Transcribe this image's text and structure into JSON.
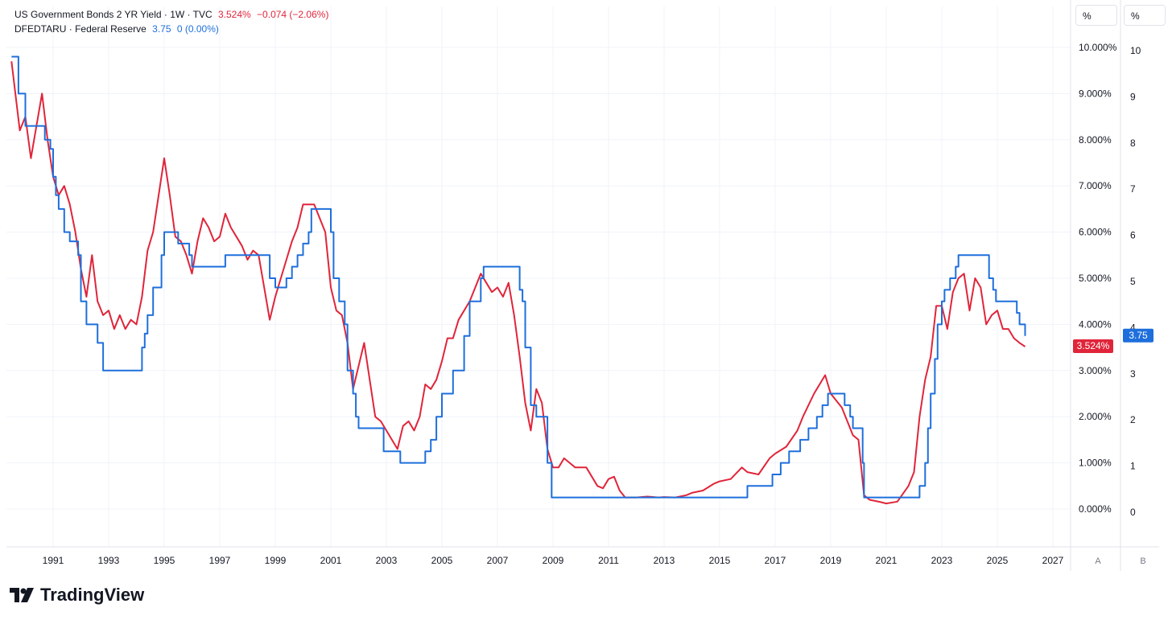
{
  "legend": {
    "series1": {
      "name": "US Government Bonds 2 YR Yield · 1W · TVC",
      "last": "3.524%",
      "change": "−0.074 (−2.06%)"
    },
    "series2": {
      "name": "DFEDTARU · Federal Reserve",
      "last": "3.75",
      "change": "0 (0.00%)"
    }
  },
  "scale_buttons": {
    "left": "%",
    "right": "%"
  },
  "axis_buttons": {
    "a": "A",
    "b": "B"
  },
  "brand": {
    "name": "TradingView"
  },
  "colors": {
    "red": "#e0253a",
    "blue": "#1e6fdc",
    "grid": "#f0f3fa",
    "axis_text": "#131722"
  },
  "chart_data": {
    "type": "line",
    "x_axis": {
      "ticks": [
        "1991",
        "1993",
        "1995",
        "1997",
        "1999",
        "2001",
        "2003",
        "2005",
        "2007",
        "2009",
        "2011",
        "2013",
        "2015",
        "2017",
        "2019",
        "2021",
        "2023",
        "2025",
        "2027"
      ],
      "range": [
        1989.4,
        2028.6
      ]
    },
    "y_left": {
      "ticks": [
        "10.000%",
        "9.000%",
        "8.000%",
        "7.000%",
        "6.000%",
        "5.000%",
        "4.000%",
        "3.000%",
        "2.000%",
        "1.000%",
        "0.000%"
      ],
      "range": [
        -0.8,
        10.5
      ]
    },
    "y_right": {
      "ticks": [
        "10",
        "9",
        "8",
        "7",
        "6",
        "5",
        "4",
        "3",
        "2",
        "1",
        "0"
      ],
      "range": [
        -0.8,
        10.5
      ]
    },
    "last_value_labels": {
      "left": "3.524%",
      "right": "3.75"
    },
    "series": [
      {
        "name": "US Government Bonds 2 YR Yield",
        "color": "#e0253a",
        "points": [
          [
            1989.5,
            9.7
          ],
          [
            1989.8,
            8.2
          ],
          [
            1990.0,
            8.5
          ],
          [
            1990.2,
            7.6
          ],
          [
            1990.4,
            8.3
          ],
          [
            1990.6,
            9.0
          ],
          [
            1990.8,
            8.0
          ],
          [
            1991.0,
            7.2
          ],
          [
            1991.2,
            6.8
          ],
          [
            1991.4,
            7.0
          ],
          [
            1991.6,
            6.6
          ],
          [
            1991.8,
            6.0
          ],
          [
            1992.0,
            5.2
          ],
          [
            1992.2,
            4.6
          ],
          [
            1992.4,
            5.5
          ],
          [
            1992.6,
            4.5
          ],
          [
            1992.8,
            4.2
          ],
          [
            1993.0,
            4.3
          ],
          [
            1993.2,
            3.9
          ],
          [
            1993.4,
            4.2
          ],
          [
            1993.6,
            3.9
          ],
          [
            1993.8,
            4.1
          ],
          [
            1994.0,
            4.0
          ],
          [
            1994.2,
            4.6
          ],
          [
            1994.4,
            5.6
          ],
          [
            1994.6,
            6.0
          ],
          [
            1994.8,
            6.8
          ],
          [
            1995.0,
            7.6
          ],
          [
            1995.2,
            6.8
          ],
          [
            1995.4,
            5.9
          ],
          [
            1995.6,
            5.8
          ],
          [
            1995.8,
            5.5
          ],
          [
            1996.0,
            5.1
          ],
          [
            1996.2,
            5.8
          ],
          [
            1996.4,
            6.3
          ],
          [
            1996.6,
            6.1
          ],
          [
            1996.8,
            5.8
          ],
          [
            1997.0,
            5.9
          ],
          [
            1997.2,
            6.4
          ],
          [
            1997.4,
            6.1
          ],
          [
            1997.6,
            5.9
          ],
          [
            1997.8,
            5.7
          ],
          [
            1998.0,
            5.4
          ],
          [
            1998.2,
            5.6
          ],
          [
            1998.4,
            5.5
          ],
          [
            1998.6,
            4.8
          ],
          [
            1998.8,
            4.1
          ],
          [
            1999.0,
            4.6
          ],
          [
            1999.2,
            5.0
          ],
          [
            1999.4,
            5.4
          ],
          [
            1999.6,
            5.8
          ],
          [
            1999.8,
            6.1
          ],
          [
            2000.0,
            6.6
          ],
          [
            2000.2,
            6.6
          ],
          [
            2000.4,
            6.6
          ],
          [
            2000.6,
            6.3
          ],
          [
            2000.8,
            6.0
          ],
          [
            2001.0,
            4.8
          ],
          [
            2001.2,
            4.3
          ],
          [
            2001.4,
            4.2
          ],
          [
            2001.6,
            3.6
          ],
          [
            2001.8,
            2.6
          ],
          [
            2002.0,
            3.1
          ],
          [
            2002.2,
            3.6
          ],
          [
            2002.4,
            2.8
          ],
          [
            2002.6,
            2.0
          ],
          [
            2002.8,
            1.9
          ],
          [
            2003.0,
            1.7
          ],
          [
            2003.2,
            1.5
          ],
          [
            2003.4,
            1.3
          ],
          [
            2003.6,
            1.8
          ],
          [
            2003.8,
            1.9
          ],
          [
            2004.0,
            1.7
          ],
          [
            2004.2,
            2.0
          ],
          [
            2004.4,
            2.7
          ],
          [
            2004.6,
            2.6
          ],
          [
            2004.8,
            2.8
          ],
          [
            2005.0,
            3.2
          ],
          [
            2005.2,
            3.7
          ],
          [
            2005.4,
            3.7
          ],
          [
            2005.6,
            4.1
          ],
          [
            2005.8,
            4.3
          ],
          [
            2006.0,
            4.5
          ],
          [
            2006.2,
            4.8
          ],
          [
            2006.4,
            5.1
          ],
          [
            2006.6,
            4.9
          ],
          [
            2006.8,
            4.7
          ],
          [
            2007.0,
            4.8
          ],
          [
            2007.2,
            4.6
          ],
          [
            2007.4,
            4.9
          ],
          [
            2007.6,
            4.2
          ],
          [
            2007.8,
            3.3
          ],
          [
            2008.0,
            2.3
          ],
          [
            2008.2,
            1.7
          ],
          [
            2008.4,
            2.6
          ],
          [
            2008.6,
            2.3
          ],
          [
            2008.8,
            1.3
          ],
          [
            2009.0,
            0.9
          ],
          [
            2009.2,
            0.9
          ],
          [
            2009.4,
            1.1
          ],
          [
            2009.6,
            1.0
          ],
          [
            2009.8,
            0.9
          ],
          [
            2010.0,
            0.9
          ],
          [
            2010.2,
            0.9
          ],
          [
            2010.4,
            0.7
          ],
          [
            2010.6,
            0.5
          ],
          [
            2010.8,
            0.45
          ],
          [
            2011.0,
            0.65
          ],
          [
            2011.2,
            0.7
          ],
          [
            2011.4,
            0.4
          ],
          [
            2011.6,
            0.25
          ],
          [
            2011.8,
            0.25
          ],
          [
            2012.0,
            0.25
          ],
          [
            2012.4,
            0.27
          ],
          [
            2012.8,
            0.25
          ],
          [
            2013.0,
            0.26
          ],
          [
            2013.4,
            0.25
          ],
          [
            2013.8,
            0.3
          ],
          [
            2014.0,
            0.35
          ],
          [
            2014.4,
            0.4
          ],
          [
            2014.8,
            0.55
          ],
          [
            2015.0,
            0.6
          ],
          [
            2015.4,
            0.65
          ],
          [
            2015.8,
            0.9
          ],
          [
            2016.0,
            0.8
          ],
          [
            2016.4,
            0.75
          ],
          [
            2016.8,
            1.1
          ],
          [
            2017.0,
            1.2
          ],
          [
            2017.4,
            1.35
          ],
          [
            2017.8,
            1.7
          ],
          [
            2018.0,
            2.0
          ],
          [
            2018.4,
            2.5
          ],
          [
            2018.8,
            2.9
          ],
          [
            2019.0,
            2.5
          ],
          [
            2019.4,
            2.2
          ],
          [
            2019.8,
            1.6
          ],
          [
            2020.0,
            1.5
          ],
          [
            2020.2,
            0.3
          ],
          [
            2020.4,
            0.2
          ],
          [
            2020.8,
            0.15
          ],
          [
            2021.0,
            0.12
          ],
          [
            2021.4,
            0.16
          ],
          [
            2021.8,
            0.5
          ],
          [
            2022.0,
            0.8
          ],
          [
            2022.2,
            2.0
          ],
          [
            2022.4,
            2.8
          ],
          [
            2022.6,
            3.3
          ],
          [
            2022.8,
            4.4
          ],
          [
            2023.0,
            4.4
          ],
          [
            2023.2,
            3.9
          ],
          [
            2023.4,
            4.7
          ],
          [
            2023.6,
            5.0
          ],
          [
            2023.8,
            5.1
          ],
          [
            2024.0,
            4.3
          ],
          [
            2024.2,
            5.0
          ],
          [
            2024.4,
            4.8
          ],
          [
            2024.6,
            4.0
          ],
          [
            2024.8,
            4.2
          ],
          [
            2025.0,
            4.3
          ],
          [
            2025.2,
            3.9
          ],
          [
            2025.4,
            3.9
          ],
          [
            2025.6,
            3.7
          ],
          [
            2025.8,
            3.6
          ],
          [
            2026.0,
            3.52
          ]
        ]
      },
      {
        "name": "DFEDTARU · Federal Reserve",
        "color": "#1e6fdc",
        "points": [
          [
            1989.5,
            9.8
          ],
          [
            1989.7,
            9.8
          ],
          [
            1989.75,
            9.0
          ],
          [
            1989.9,
            9.0
          ],
          [
            1990.0,
            8.3
          ],
          [
            1990.6,
            8.3
          ],
          [
            1990.7,
            8.0
          ],
          [
            1990.9,
            7.8
          ],
          [
            1991.0,
            7.2
          ],
          [
            1991.1,
            6.8
          ],
          [
            1991.2,
            6.5
          ],
          [
            1991.4,
            6.0
          ],
          [
            1991.6,
            5.8
          ],
          [
            1991.9,
            5.5
          ],
          [
            1992.0,
            4.5
          ],
          [
            1992.2,
            4.0
          ],
          [
            1992.6,
            3.6
          ],
          [
            1992.8,
            3.0
          ],
          [
            1994.1,
            3.0
          ],
          [
            1994.2,
            3.5
          ],
          [
            1994.3,
            3.8
          ],
          [
            1994.4,
            4.2
          ],
          [
            1994.6,
            4.8
          ],
          [
            1994.9,
            5.5
          ],
          [
            1995.0,
            6.0
          ],
          [
            1995.5,
            5.75
          ],
          [
            1995.9,
            5.5
          ],
          [
            1996.0,
            5.25
          ],
          [
            1997.2,
            5.5
          ],
          [
            1998.7,
            5.5
          ],
          [
            1998.8,
            5.0
          ],
          [
            1999.0,
            4.8
          ],
          [
            1999.4,
            5.0
          ],
          [
            1999.6,
            5.25
          ],
          [
            1999.8,
            5.5
          ],
          [
            2000.0,
            5.75
          ],
          [
            2000.2,
            6.0
          ],
          [
            2000.3,
            6.5
          ],
          [
            2001.0,
            6.0
          ],
          [
            2001.1,
            5.0
          ],
          [
            2001.3,
            4.5
          ],
          [
            2001.5,
            4.0
          ],
          [
            2001.6,
            3.0
          ],
          [
            2001.8,
            2.5
          ],
          [
            2001.9,
            2.0
          ],
          [
            2002.0,
            1.75
          ],
          [
            2002.9,
            1.25
          ],
          [
            2003.5,
            1.0
          ],
          [
            2004.4,
            1.25
          ],
          [
            2004.6,
            1.5
          ],
          [
            2004.8,
            2.0
          ],
          [
            2005.0,
            2.5
          ],
          [
            2005.4,
            3.0
          ],
          [
            2005.8,
            3.75
          ],
          [
            2006.0,
            4.5
          ],
          [
            2006.4,
            5.0
          ],
          [
            2006.5,
            5.25
          ],
          [
            2007.7,
            5.25
          ],
          [
            2007.8,
            4.75
          ],
          [
            2007.9,
            4.5
          ],
          [
            2008.0,
            3.5
          ],
          [
            2008.2,
            2.25
          ],
          [
            2008.4,
            2.0
          ],
          [
            2008.8,
            1.0
          ],
          [
            2008.95,
            0.25
          ],
          [
            2015.9,
            0.25
          ],
          [
            2016.0,
            0.5
          ],
          [
            2016.9,
            0.75
          ],
          [
            2017.2,
            1.0
          ],
          [
            2017.5,
            1.25
          ],
          [
            2017.9,
            1.5
          ],
          [
            2018.2,
            1.75
          ],
          [
            2018.5,
            2.0
          ],
          [
            2018.7,
            2.25
          ],
          [
            2018.9,
            2.5
          ],
          [
            2019.5,
            2.25
          ],
          [
            2019.7,
            2.0
          ],
          [
            2019.8,
            1.75
          ],
          [
            2020.15,
            1.0
          ],
          [
            2020.2,
            0.25
          ],
          [
            2022.2,
            0.5
          ],
          [
            2022.4,
            1.0
          ],
          [
            2022.5,
            1.75
          ],
          [
            2022.6,
            2.5
          ],
          [
            2022.75,
            3.25
          ],
          [
            2022.85,
            4.0
          ],
          [
            2023.0,
            4.5
          ],
          [
            2023.1,
            4.75
          ],
          [
            2023.3,
            5.0
          ],
          [
            2023.5,
            5.25
          ],
          [
            2023.6,
            5.5
          ],
          [
            2024.7,
            5.0
          ],
          [
            2024.85,
            4.75
          ],
          [
            2024.95,
            4.5
          ],
          [
            2025.7,
            4.25
          ],
          [
            2025.8,
            4.0
          ],
          [
            2026.0,
            3.75
          ]
        ]
      }
    ]
  }
}
